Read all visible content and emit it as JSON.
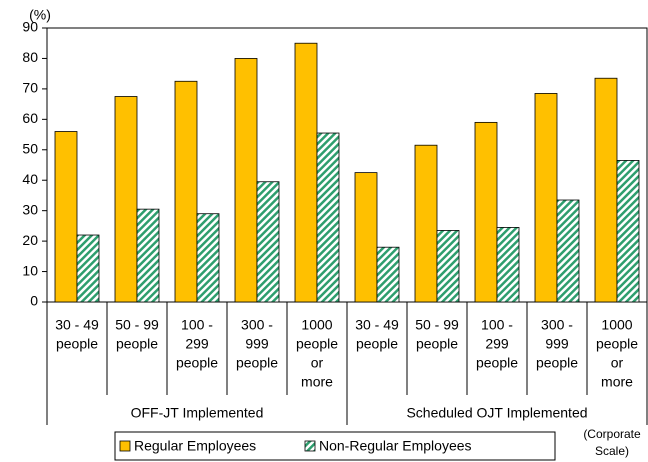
{
  "chart_data": {
    "type": "bar",
    "y_unit_label": "(%)",
    "categories": [
      [
        "30 - 49",
        "people"
      ],
      [
        "50 - 99",
        "people"
      ],
      [
        "100 -",
        "299",
        "people"
      ],
      [
        "300 -",
        "999",
        "people"
      ],
      [
        "1000",
        "people",
        "or",
        "more"
      ],
      [
        "30 - 49",
        "people"
      ],
      [
        "50 - 99",
        "people"
      ],
      [
        "100 -",
        "299",
        "people"
      ],
      [
        "300 -",
        "999",
        "people"
      ],
      [
        "1000",
        "people",
        "or",
        "more"
      ]
    ],
    "groups": [
      "OFF-JT Implemented",
      "Scheduled OJT Implemented"
    ],
    "series": [
      {
        "name": "Regular Employees",
        "color": "#FFC000",
        "values": [
          56,
          67.5,
          72.5,
          80,
          85,
          42.5,
          51.5,
          59,
          68.5,
          73.5
        ]
      },
      {
        "name": "Non-Regular Employees",
        "color": "#2E9E6E",
        "pattern": "hatch",
        "values": [
          22,
          30.5,
          29,
          39.5,
          55.5,
          18,
          23.5,
          24.5,
          33.5,
          46.5
        ]
      }
    ],
    "ylim": [
      0,
      90
    ],
    "yticks": [
      0,
      10,
      20,
      30,
      40,
      50,
      60,
      70,
      80,
      90
    ],
    "grid": false,
    "note": [
      "(Corporate",
      "Scale)"
    ]
  }
}
